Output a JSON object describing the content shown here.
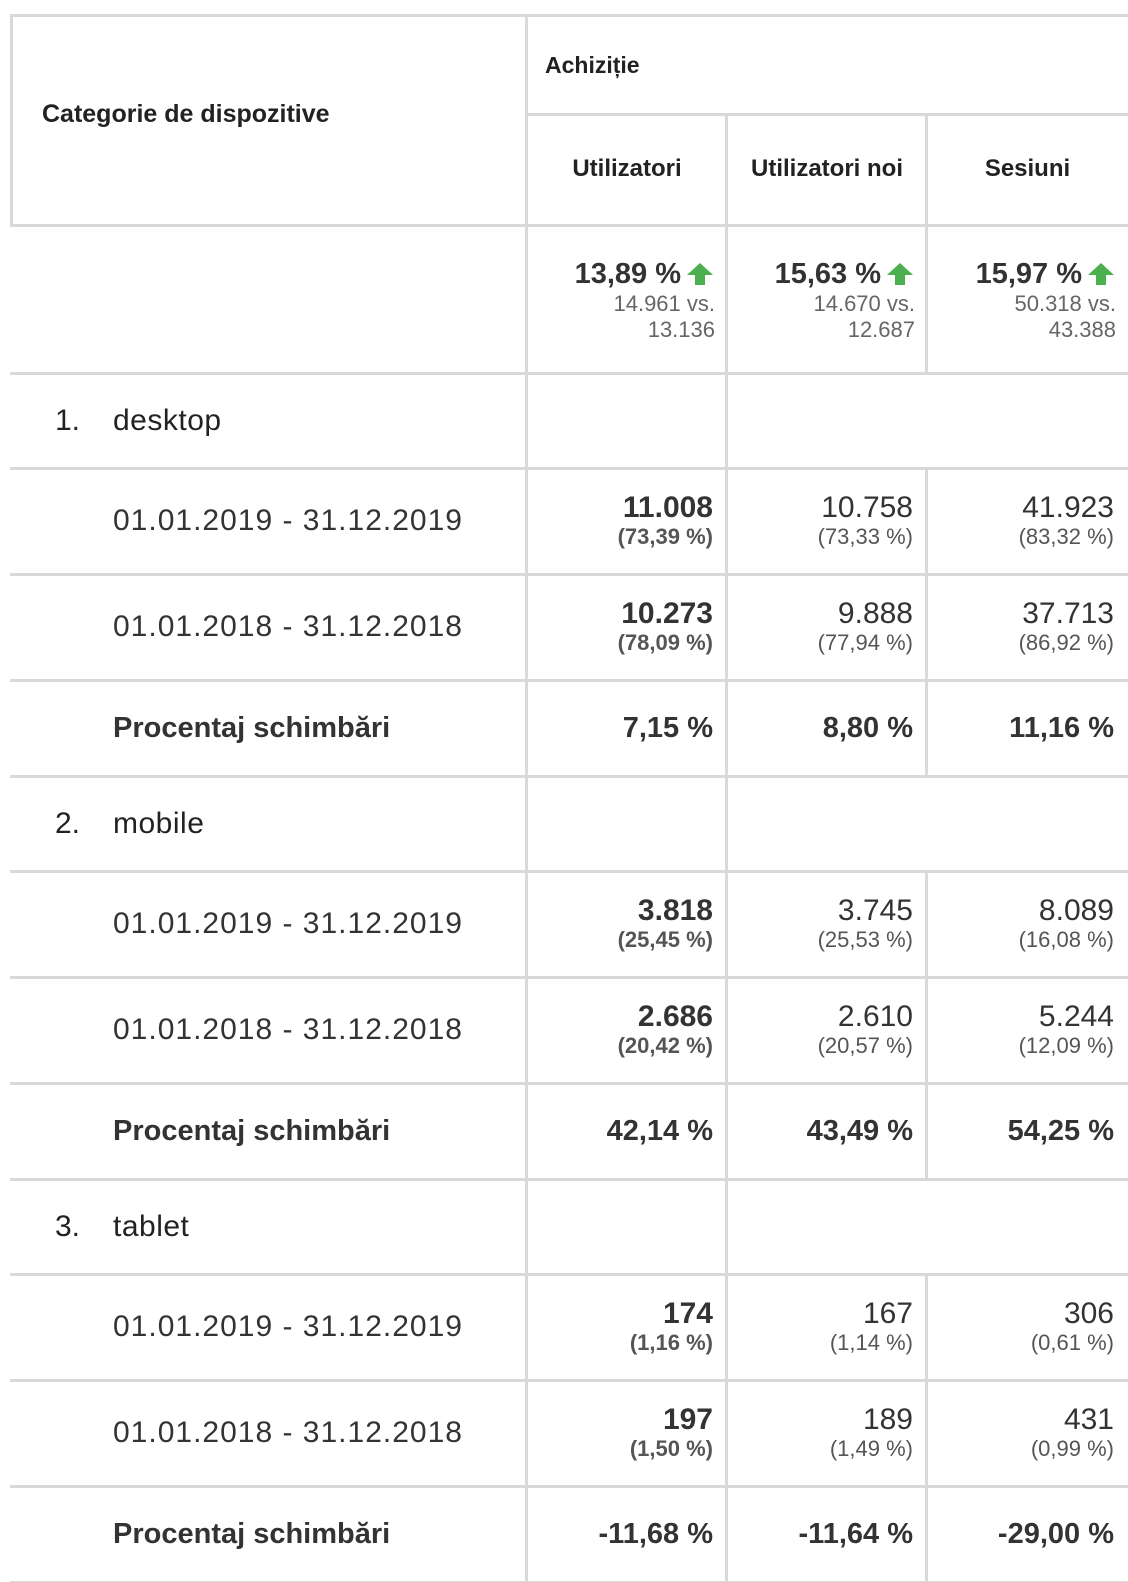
{
  "header": {
    "category": "Categorie de dispozitive",
    "group": "Achiziție",
    "columns": [
      "Utilizatori",
      "Utilizatori noi",
      "Sesiuni"
    ]
  },
  "summary": [
    {
      "change": "13,89 %",
      "detail": "14.961 vs. 13.136"
    },
    {
      "change": "15,63 %",
      "detail": "14.670 vs. 12.687"
    },
    {
      "change": "15,97 %",
      "detail": "50.318 vs. 43.388"
    }
  ],
  "groups": [
    {
      "index": "1.",
      "name": "desktop",
      "rows": [
        {
          "label": "01.01.2019 - 31.12.2019",
          "cells": [
            {
              "value": "11.008",
              "percent": "(73,39 %)"
            },
            {
              "value": "10.758",
              "percent": "(73,33 %)"
            },
            {
              "value": "41.923",
              "percent": "(83,32 %)"
            }
          ]
        },
        {
          "label": "01.01.2018 - 31.12.2018",
          "cells": [
            {
              "value": "10.273",
              "percent": "(78,09 %)"
            },
            {
              "value": "9.888",
              "percent": "(77,94 %)"
            },
            {
              "value": "37.713",
              "percent": "(86,92 %)"
            }
          ]
        }
      ],
      "change": {
        "label": "Procentaj schimbări",
        "cells": [
          "7,15 %",
          "8,80 %",
          "11,16 %"
        ]
      }
    },
    {
      "index": "2.",
      "name": "mobile",
      "rows": [
        {
          "label": "01.01.2019 - 31.12.2019",
          "cells": [
            {
              "value": "3.818",
              "percent": "(25,45 %)"
            },
            {
              "value": "3.745",
              "percent": "(25,53 %)"
            },
            {
              "value": "8.089",
              "percent": "(16,08 %)"
            }
          ]
        },
        {
          "label": "01.01.2018 - 31.12.2018",
          "cells": [
            {
              "value": "2.686",
              "percent": "(20,42 %)"
            },
            {
              "value": "2.610",
              "percent": "(20,57 %)"
            },
            {
              "value": "5.244",
              "percent": "(12,09 %)"
            }
          ]
        }
      ],
      "change": {
        "label": "Procentaj schimbări",
        "cells": [
          "42,14 %",
          "43,49 %",
          "54,25 %"
        ]
      }
    },
    {
      "index": "3.",
      "name": "tablet",
      "rows": [
        {
          "label": "01.01.2019 - 31.12.2019",
          "cells": [
            {
              "value": "174",
              "percent": "(1,16 %)"
            },
            {
              "value": "167",
              "percent": "(1,14 %)"
            },
            {
              "value": "306",
              "percent": "(0,61 %)"
            }
          ]
        },
        {
          "label": "01.01.2018 - 31.12.2018",
          "cells": [
            {
              "value": "197",
              "percent": "(1,50 %)"
            },
            {
              "value": "189",
              "percent": "(1,49 %)"
            },
            {
              "value": "431",
              "percent": "(0,99 %)"
            }
          ]
        }
      ],
      "change": {
        "label": "Procentaj schimbări",
        "cells": [
          "-11,68 %",
          "-11,64 %",
          "-29,00 %"
        ]
      }
    }
  ]
}
